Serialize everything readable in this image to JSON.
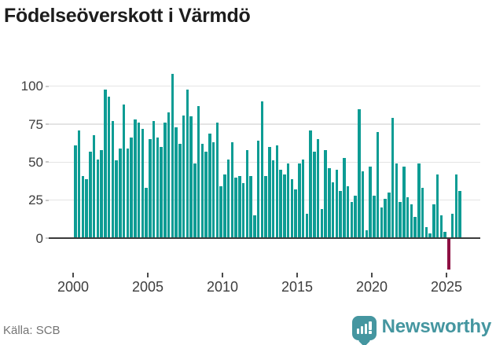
{
  "title": "Födelseöverskott i Värmdö",
  "source": "Källa: SCB",
  "branding": {
    "logo_text": "Newsworthy",
    "logo_icon": "bar-chart-speech-bubble-icon",
    "logo_color": "#4596a0"
  },
  "chart_data": {
    "type": "bar",
    "title": "Födelseöverskott i Värmdö",
    "frequency": "quarterly",
    "start_period": "2000-Q1",
    "end_period": "2025-Q4",
    "values": [
      61,
      71,
      41,
      39,
      57,
      68,
      52,
      58,
      98,
      93,
      77,
      51,
      59,
      88,
      59,
      66,
      78,
      76,
      72,
      33,
      65,
      77,
      66,
      60,
      76,
      83,
      108,
      73,
      62,
      81,
      98,
      80,
      49,
      87,
      62,
      57,
      69,
      63,
      76,
      34,
      42,
      52,
      63,
      40,
      41,
      36,
      58,
      41,
      15,
      64,
      90,
      41,
      60,
      51,
      61,
      45,
      42,
      49,
      39,
      32,
      49,
      52,
      16,
      71,
      57,
      65,
      19,
      58,
      46,
      37,
      45,
      31,
      53,
      34,
      24,
      28,
      85,
      44,
      5,
      47,
      28,
      70,
      20,
      26,
      30,
      79,
      49,
      24,
      47,
      27,
      22,
      14,
      49,
      33,
      7,
      3,
      22,
      42,
      15,
      4,
      -20,
      16,
      42,
      31
    ],
    "bar_color": "#0d9c94",
    "highlight": {
      "index": 100,
      "period": "2025-Q1",
      "color": "#8e1043"
    },
    "yticks": [
      0,
      25,
      50,
      75,
      100
    ],
    "xtick_labels": [
      "2000",
      "2005",
      "2010",
      "2015",
      "2020",
      "2025"
    ],
    "ylim": [
      -25,
      110
    ],
    "grid": true,
    "legend": false,
    "gridline_color": "#e4e4e4",
    "axis_color": "#3b3b3b"
  }
}
